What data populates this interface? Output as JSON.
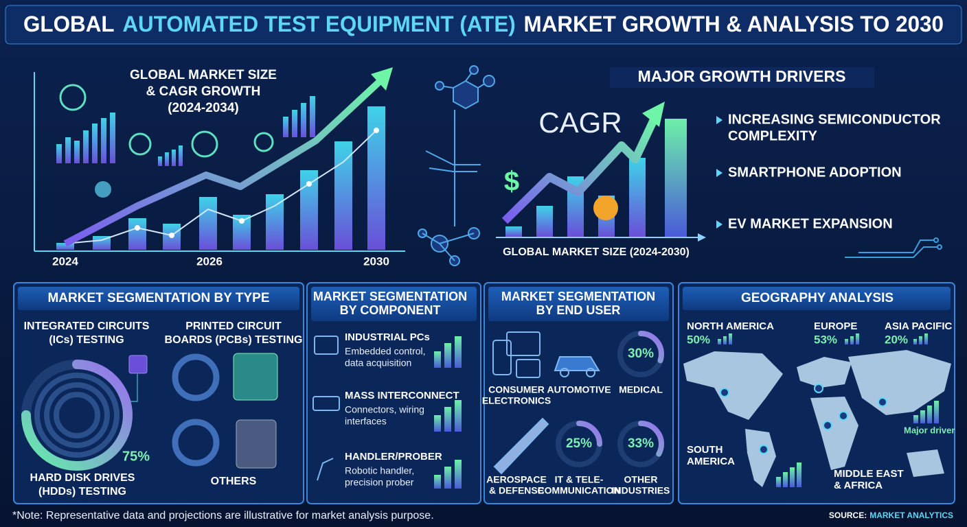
{
  "header": {
    "title": [
      "GLOBAL",
      "AUTOMATED TEST EQUIPMENT (ATE)",
      "MARKET GROWTH & ANALYSIS TO 2030"
    ]
  },
  "market_chart": {
    "title": [
      "GLOBAL MARKET SIZE",
      "& CAGR GROWTH",
      "(2024-2034)"
    ],
    "x_labels": [
      "2024",
      "2026",
      "2030"
    ]
  },
  "growth_drivers": {
    "title": "MAJOR GROWTH DRIVERS",
    "chart_label": "CAGR",
    "axis_label": "GLOBAL MARKET SIZE (2024-2030)",
    "items": [
      [
        "INCREASING SEMICONDUCTOR",
        "COMPLEXITY"
      ],
      [
        "SMARTPHONE ADOPTION"
      ],
      [
        "EV MARKET EXPANSION"
      ]
    ]
  },
  "by_type": {
    "title": "MARKET SEGMENTATION BY TYPE",
    "ics": [
      "INTEGRATED CIRCUITS",
      "(ICs) TESTING"
    ],
    "pcbs": [
      "PRINTED CIRCUIT",
      "BOARDS (PCBs) TESTING"
    ],
    "hdds": [
      "HARD DISK DRIVES",
      "(HDDs) TESTING"
    ],
    "hdds_share": {
      "value": 75,
      "label": "75%"
    },
    "others": "OTHERS"
  },
  "by_component": {
    "title": [
      "MARKET SEGMENTATION",
      "BY COMPONENT"
    ],
    "items": [
      {
        "name": "INDUSTRIAL PCs",
        "desc": [
          "Embedded control,",
          "data acquisition"
        ]
      },
      {
        "name": "MASS INTERCONNECT",
        "desc": [
          "Connectors, wiring",
          "interfaces"
        ]
      },
      {
        "name": "HANDLER/PROBER",
        "desc": [
          "Robotic handler,",
          "precision prober"
        ]
      }
    ]
  },
  "by_end_user": {
    "title": [
      "MARKET SEGMENTATION",
      "BY END USER"
    ],
    "items": [
      {
        "name": [
          "CONSUMER",
          "ELECTRONICS"
        ]
      },
      {
        "name": [
          "AUTOMOTIVE"
        ]
      },
      {
        "name": [
          "MEDICAL"
        ],
        "share": {
          "value": 30,
          "label": "30%"
        }
      },
      {
        "name": [
          "AEROSPACE",
          "& DEFENSE"
        ]
      },
      {
        "name": [
          "IT & TELE-",
          "COMMUNICATION"
        ],
        "share": {
          "value": 25,
          "label": "25%"
        }
      },
      {
        "name": [
          "OTHER",
          "INDUSTRIES"
        ],
        "share": {
          "value": 33,
          "label": "33%"
        }
      }
    ]
  },
  "geography": {
    "title": "GEOGRAPHY ANALYSIS",
    "regions": [
      {
        "name": [
          "NORTH AMERICA"
        ],
        "share": "50%"
      },
      {
        "name": [
          "EUROPE"
        ],
        "share": "53%"
      },
      {
        "name": [
          "ASIA PACIFIC"
        ],
        "share": "20%"
      },
      {
        "name": [
          "SOUTH",
          "AMERICA"
        ]
      },
      {
        "name": [
          "MIDDLE EAST",
          "& AFRICA"
        ]
      }
    ],
    "note": "Major driver"
  },
  "footer": {
    "note": "*Note: Representative data and projections are illustrative for market analysis purpose.",
    "source": [
      "SOURCE:",
      "MARKET ANALYTICS"
    ]
  }
}
